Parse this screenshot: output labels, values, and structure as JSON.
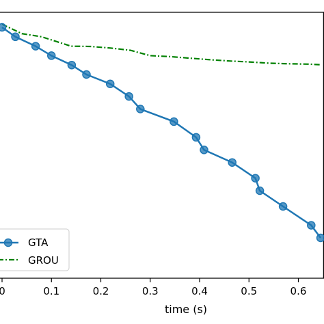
{
  "chart_data": {
    "type": "line",
    "title": "",
    "xlabel": "time (s)",
    "ylabel": "",
    "xlim": [
      0.0,
      0.645
    ],
    "ylim": [
      0.0,
      1.0
    ],
    "x_ticks": [
      "0",
      "0.1",
      "0.2",
      "0.3",
      "0.4",
      "0.5",
      "0.6"
    ],
    "x_tick_values": [
      0.0,
      0.1,
      0.2,
      0.3,
      0.4,
      0.5,
      0.6
    ],
    "grid": false,
    "legend_position": "lower-left",
    "series": [
      {
        "name": "GTA",
        "color": "#1f77b4",
        "style": "solid-with-circle-markers",
        "x": [
          0.0,
          0.027,
          0.068,
          0.1,
          0.141,
          0.171,
          0.219,
          0.257,
          0.28,
          0.348,
          0.393,
          0.409,
          0.466,
          0.513,
          0.522,
          0.569,
          0.626,
          0.645
        ],
        "y": [
          0.96,
          0.93,
          0.9,
          0.87,
          0.84,
          0.81,
          0.78,
          0.74,
          0.7,
          0.66,
          0.61,
          0.57,
          0.53,
          0.48,
          0.44,
          0.39,
          0.33,
          0.29
        ]
      },
      {
        "name": "GROU",
        "color": "#008000",
        "style": "dash-dot",
        "x": [
          0.0,
          0.04,
          0.08,
          0.14,
          0.18,
          0.22,
          0.26,
          0.3,
          0.34,
          0.38,
          0.42,
          0.46,
          0.5,
          0.54,
          0.58,
          0.62,
          0.645
        ],
        "y": [
          0.97,
          0.94,
          0.93,
          0.9,
          0.899,
          0.894,
          0.887,
          0.87,
          0.867,
          0.862,
          0.857,
          0.853,
          0.85,
          0.846,
          0.844,
          0.843,
          0.841
        ]
      }
    ]
  }
}
